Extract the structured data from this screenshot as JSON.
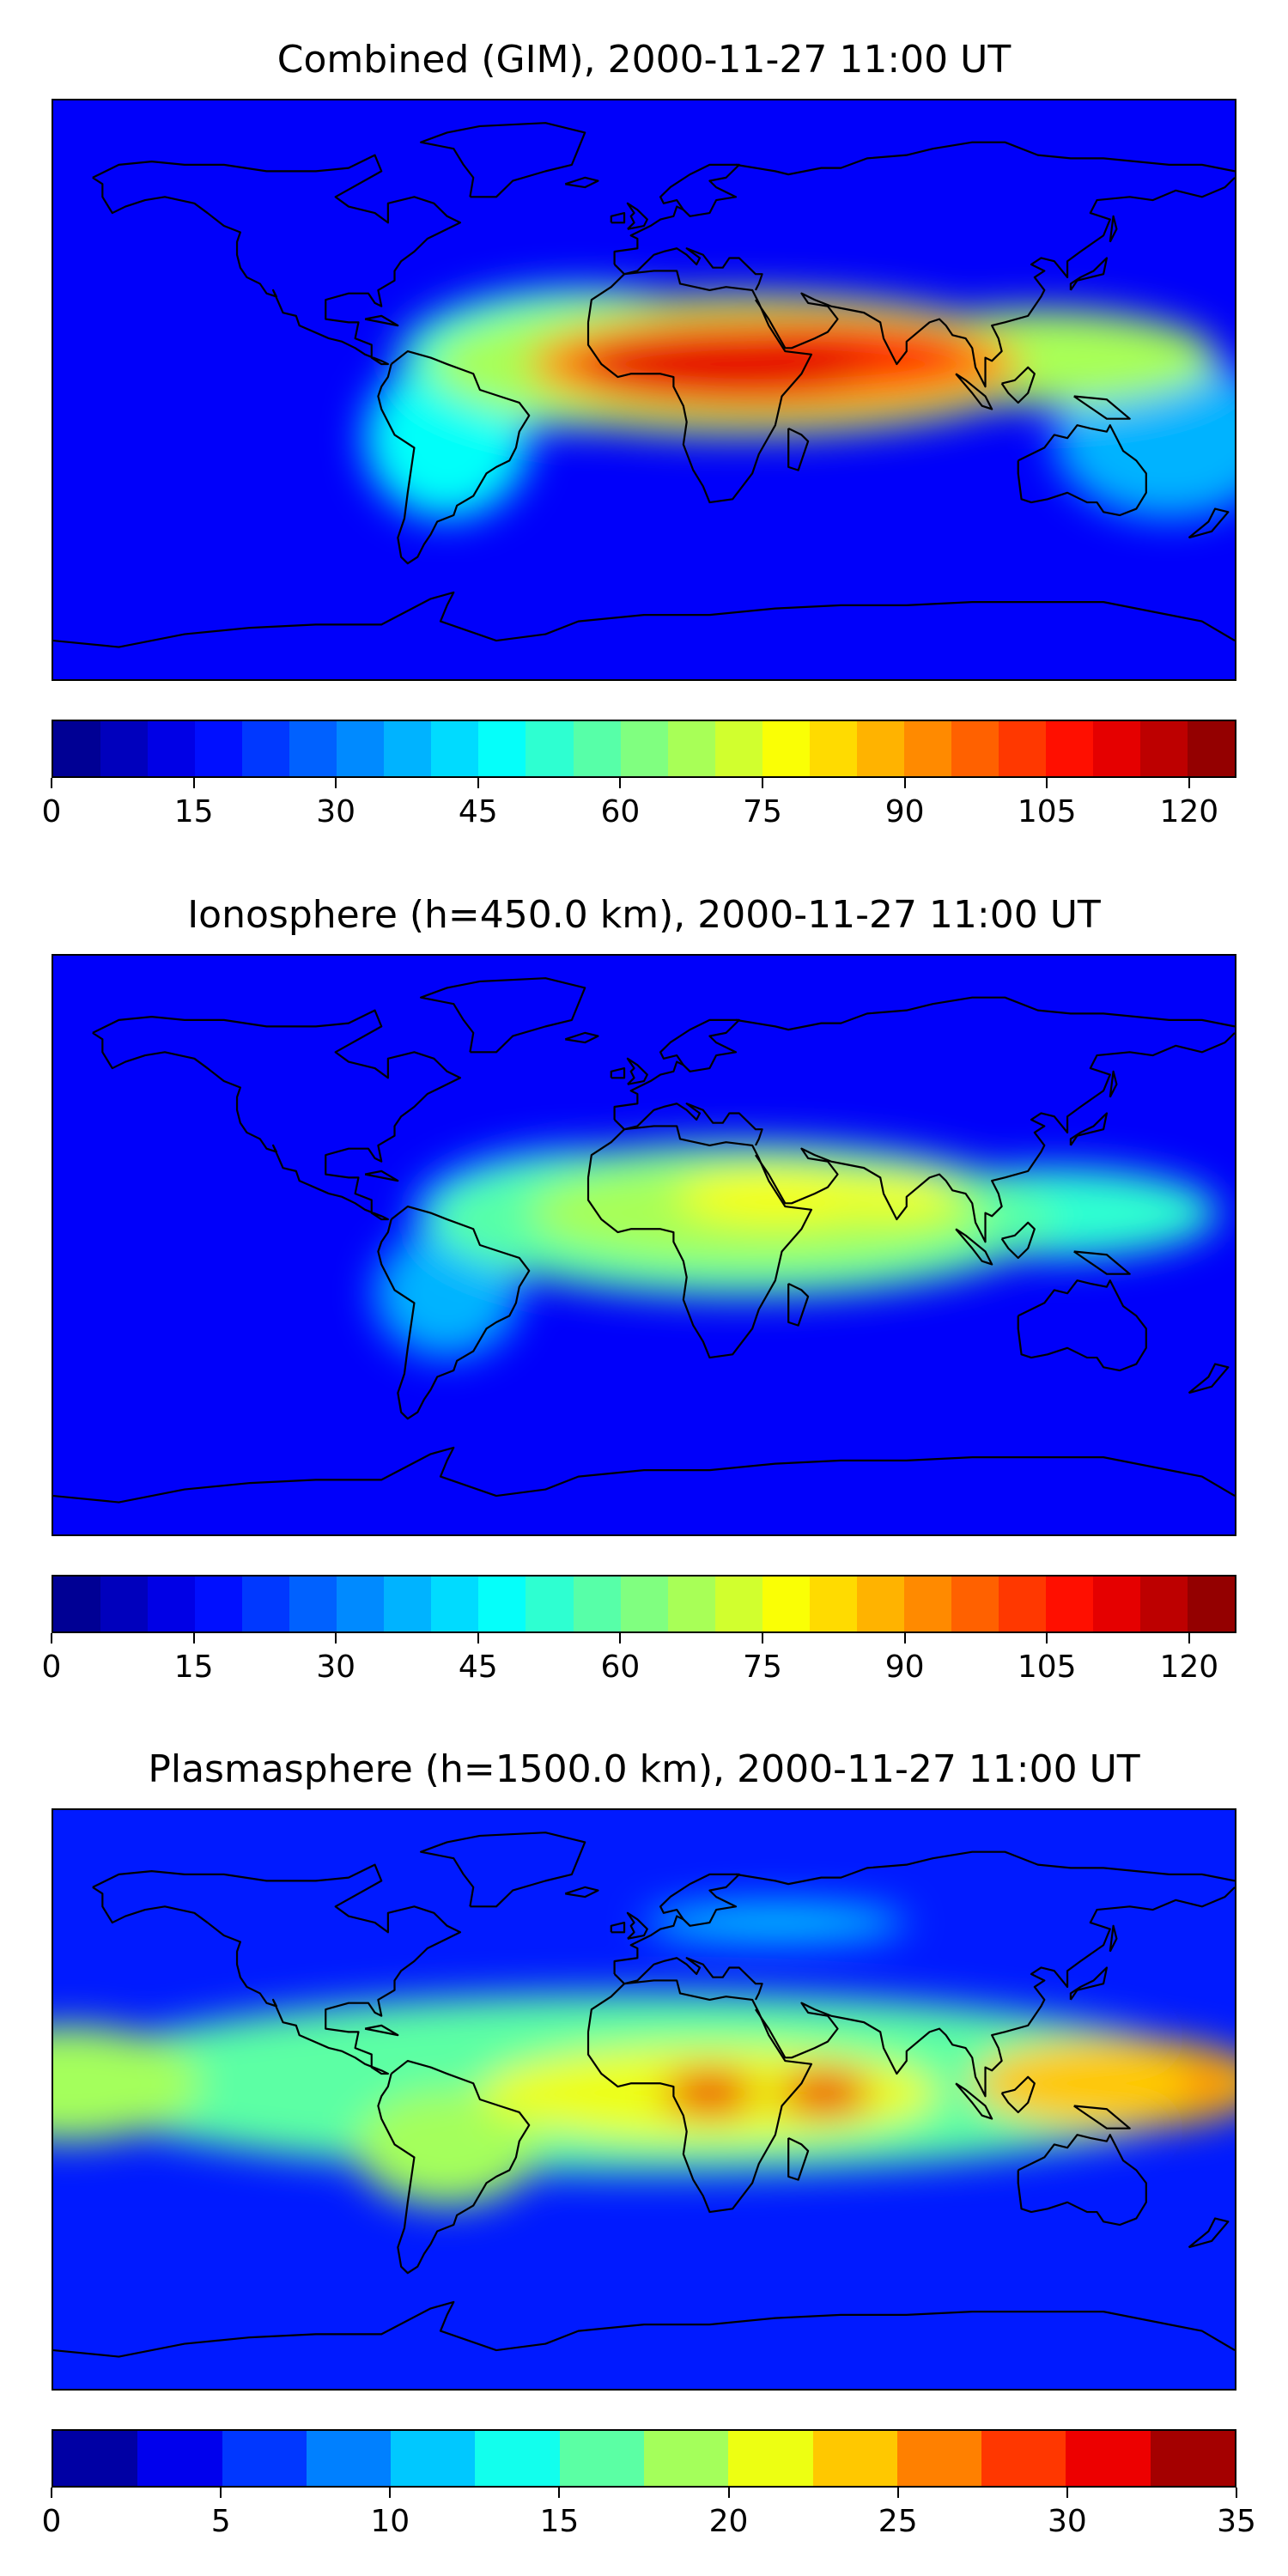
{
  "panels": [
    {
      "title": "Combined (GIM), 2000-11-27 11:00 UT",
      "colorbar": {
        "min": 0,
        "max": 125,
        "levels": 25,
        "ticks": [
          "0",
          "15",
          "30",
          "45",
          "60",
          "75",
          "90",
          "105",
          "120"
        ],
        "tick_values": [
          0,
          15,
          30,
          45,
          60,
          75,
          90,
          105,
          120
        ]
      },
      "blobs": [
        {
          "lon": 30,
          "lat": 8,
          "rx": 95,
          "ry": 22,
          "level": 0.55
        },
        {
          "lon": 40,
          "lat": 8,
          "rx": 75,
          "ry": 16,
          "level": 0.72
        },
        {
          "lon": 25,
          "lat": 8,
          "rx": 45,
          "ry": 11,
          "level": 0.88
        },
        {
          "lon": 60,
          "lat": 12,
          "rx": 40,
          "ry": 9,
          "level": 0.86
        },
        {
          "lon": -20,
          "lat": 10,
          "rx": 55,
          "ry": 22,
          "level": 0.42
        },
        {
          "lon": 120,
          "lat": 10,
          "rx": 55,
          "ry": 15,
          "level": 0.55
        },
        {
          "lon": -60,
          "lat": -15,
          "rx": 25,
          "ry": 25,
          "level": 0.38
        },
        {
          "lon": 160,
          "lat": -15,
          "rx": 35,
          "ry": 25,
          "level": 0.3
        }
      ]
    },
    {
      "title": "Ionosphere  (h=450.0 km), 2000-11-27 11:00 UT",
      "colorbar": {
        "min": 0,
        "max": 125,
        "levels": 25,
        "ticks": [
          "0",
          "15",
          "30",
          "45",
          "60",
          "75",
          "90",
          "105",
          "120"
        ],
        "tick_values": [
          0,
          15,
          30,
          45,
          60,
          75,
          90,
          105,
          120
        ]
      },
      "blobs": [
        {
          "lon": 30,
          "lat": 8,
          "rx": 95,
          "ry": 24,
          "level": 0.45
        },
        {
          "lon": 35,
          "lat": 10,
          "rx": 70,
          "ry": 16,
          "level": 0.55
        },
        {
          "lon": 40,
          "lat": 15,
          "rx": 30,
          "ry": 8,
          "level": 0.62
        },
        {
          "lon": 75,
          "lat": 15,
          "rx": 20,
          "ry": 6,
          "level": 0.6
        },
        {
          "lon": -20,
          "lat": 10,
          "rx": 50,
          "ry": 20,
          "level": 0.35
        },
        {
          "lon": 125,
          "lat": 10,
          "rx": 50,
          "ry": 14,
          "level": 0.42
        },
        {
          "lon": -60,
          "lat": -15,
          "rx": 22,
          "ry": 20,
          "level": 0.3
        }
      ]
    },
    {
      "title": "Plasmasphere (h=1500.0 km), 2000-11-27 11:00 UT",
      "colorbar": {
        "min": 0,
        "max": 35,
        "levels": 14,
        "ticks": [
          "0",
          "5",
          "10",
          "15",
          "20",
          "25",
          "30",
          "35"
        ],
        "tick_values": [
          0,
          5,
          10,
          15,
          20,
          25,
          30,
          35
        ]
      },
      "blobs": [
        {
          "lon": 0,
          "lat": 5,
          "rx": 180,
          "ry": 28,
          "level": 0.45
        },
        {
          "lon": 20,
          "lat": 2,
          "rx": 70,
          "ry": 15,
          "level": 0.62
        },
        {
          "lon": 20,
          "lat": 2,
          "rx": 14,
          "ry": 7,
          "level": 0.86
        },
        {
          "lon": 55,
          "lat": 2,
          "rx": 14,
          "ry": 7,
          "level": 0.86
        },
        {
          "lon": 145,
          "lat": 5,
          "rx": 45,
          "ry": 14,
          "level": 0.66
        },
        {
          "lon": 172,
          "lat": 5,
          "rx": 8,
          "ry": 6,
          "level": 0.78
        },
        {
          "lon": -175,
          "lat": 5,
          "rx": 40,
          "ry": 18,
          "level": 0.52
        },
        {
          "lon": -60,
          "lat": -15,
          "rx": 28,
          "ry": 18,
          "level": 0.5
        },
        {
          "lon": 40,
          "lat": 55,
          "rx": 40,
          "ry": 6,
          "level": 0.35
        }
      ]
    }
  ]
}
